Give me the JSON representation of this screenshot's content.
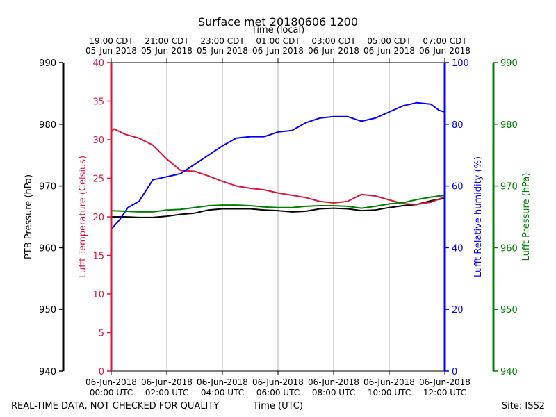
{
  "chart_data": {
    "type": "line",
    "title": "Surface met 20180606 1200",
    "top_xlabel": "Time (local)",
    "xlabel": "Time (UTC)",
    "footer_left": "REAL-TIME DATA, NOT CHECKED FOR QUALITY",
    "footer_right": "Site: ISS2",
    "x_range_hours": [
      0,
      12
    ],
    "top_ticks": [
      {
        "h": 0,
        "line1": "19:00 CDT",
        "line2": "05-Jun-2018"
      },
      {
        "h": 2,
        "line1": "21:00 CDT",
        "line2": "05-Jun-2018"
      },
      {
        "h": 4,
        "line1": "23:00 CDT",
        "line2": "05-Jun-2018"
      },
      {
        "h": 6,
        "line1": "01:00 CDT",
        "line2": "06-Jun-2018"
      },
      {
        "h": 8,
        "line1": "03:00 CDT",
        "line2": "06-Jun-2018"
      },
      {
        "h": 10,
        "line1": "05:00 CDT",
        "line2": "06-Jun-2018"
      },
      {
        "h": 12,
        "line1": "07:00 CDT",
        "line2": "06-Jun-2018"
      }
    ],
    "bottom_ticks": [
      {
        "h": 0,
        "line1": "06-Jun-2018",
        "line2": "00:00 UTC"
      },
      {
        "h": 2,
        "line1": "06-Jun-2018",
        "line2": "02:00 UTC"
      },
      {
        "h": 4,
        "line1": "06-Jun-2018",
        "line2": "04:00 UTC"
      },
      {
        "h": 6,
        "line1": "06-Jun-2018",
        "line2": "06:00 UTC"
      },
      {
        "h": 8,
        "line1": "06-Jun-2018",
        "line2": "08:00 UTC"
      },
      {
        "h": 10,
        "line1": "06-Jun-2018",
        "line2": "10:00 UTC"
      },
      {
        "h": 12,
        "line1": "06-Jun-2018",
        "line2": "12:00 UTC"
      }
    ],
    "axes": {
      "ptb": {
        "label": "PTB Pressure (hPa)",
        "range": [
          940,
          990
        ],
        "ticks": [
          940,
          950,
          960,
          970,
          980,
          990
        ],
        "color": "#000000"
      },
      "temp": {
        "label": "Lufft Temperature (Celsius)",
        "range": [
          0,
          40
        ],
        "ticks": [
          0,
          5,
          10,
          15,
          20,
          25,
          30,
          35,
          40
        ],
        "color": "#dc143c"
      },
      "rh": {
        "label": "Lufft Relative humidity (%)",
        "range": [
          0,
          100
        ],
        "ticks": [
          0,
          20,
          40,
          60,
          80,
          100
        ],
        "color": "#0000ff"
      },
      "lp": {
        "label": "Lufft Pressure (hPa)",
        "range": [
          940,
          990
        ],
        "ticks": [
          940,
          950,
          960,
          970,
          980,
          990
        ],
        "color": "#008000"
      }
    },
    "series": [
      {
        "name": "PTB Pressure",
        "axis": "ptb",
        "color": "#000000",
        "x": [
          0,
          0.5,
          1,
          1.5,
          2,
          2.5,
          3,
          3.5,
          4,
          4.5,
          5,
          5.5,
          6,
          6.5,
          7,
          7.5,
          8,
          8.5,
          9,
          9.5,
          10,
          10.5,
          11,
          11.5,
          12
        ],
        "values": [
          965.0,
          965.0,
          964.9,
          964.9,
          965.1,
          965.4,
          965.6,
          966.1,
          966.3,
          966.3,
          966.3,
          966.1,
          966.0,
          965.8,
          965.9,
          966.3,
          966.4,
          966.3,
          966.0,
          966.1,
          966.5,
          966.8,
          967.0,
          967.6,
          968.0
        ]
      },
      {
        "name": "Lufft Temperature",
        "axis": "temp",
        "color": "#dc143c",
        "x": [
          0,
          0.1,
          0.5,
          1,
          1.5,
          2,
          2.5,
          3,
          3.5,
          4,
          4.5,
          5,
          5.5,
          6,
          6.5,
          7,
          7.5,
          8,
          8.5,
          9,
          9.5,
          10,
          10.5,
          11,
          11.5,
          12
        ],
        "values": [
          31.0,
          31.4,
          30.7,
          30.2,
          29.3,
          27.5,
          26.0,
          25.9,
          25.3,
          24.6,
          24.0,
          23.7,
          23.5,
          23.1,
          22.8,
          22.5,
          22.0,
          21.8,
          22.0,
          22.9,
          22.7,
          22.2,
          21.7,
          21.6,
          21.9,
          22.6
        ]
      },
      {
        "name": "Lufft Relative humidity",
        "axis": "rh",
        "color": "#0000ff",
        "x": [
          0,
          0.3,
          0.6,
          1,
          1.5,
          2,
          2.5,
          3,
          3.5,
          4,
          4.5,
          5,
          5.5,
          6,
          6.5,
          7,
          7.5,
          8,
          8.5,
          9,
          9.5,
          10,
          10.5,
          11,
          11.5,
          11.8,
          12
        ],
        "values": [
          46.0,
          49.0,
          53.0,
          55.0,
          62.0,
          63.0,
          64.0,
          67.0,
          70.0,
          73.0,
          75.5,
          76.0,
          76.0,
          77.5,
          78.0,
          80.5,
          82.0,
          82.5,
          82.5,
          81.0,
          82.0,
          84.0,
          86.0,
          87.0,
          86.5,
          84.5,
          84.0
        ]
      },
      {
        "name": "Lufft Pressure",
        "axis": "lp",
        "color": "#008000",
        "x": [
          0,
          0.5,
          1,
          1.5,
          2,
          2.5,
          3,
          3.5,
          4,
          4.5,
          5,
          5.5,
          6,
          6.5,
          7,
          7.5,
          8,
          8.5,
          9,
          9.5,
          10,
          10.5,
          11,
          11.5,
          12
        ],
        "values": [
          966.0,
          965.9,
          965.8,
          965.8,
          966.1,
          966.2,
          966.5,
          966.8,
          966.9,
          966.9,
          966.8,
          966.6,
          966.5,
          966.5,
          966.7,
          966.8,
          966.8,
          966.7,
          966.4,
          966.7,
          967.1,
          967.3,
          967.8,
          968.2,
          968.5
        ]
      }
    ]
  }
}
